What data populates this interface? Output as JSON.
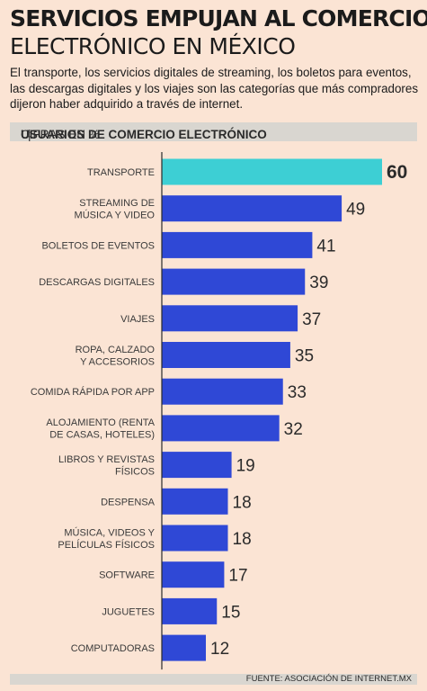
{
  "header": {
    "title_line1": "SERVICIOS EMPUJAN AL COMERCIO",
    "title_line2": "ELECTRÓNICO EN MÉXICO",
    "intro": "El transporte, los servicios digitales de streaming, los boletos para eventos, las descargas digitales y los viajes son las categorías que más compradores dijeron haber adquirido a través de internet."
  },
  "band": {
    "title": "USUARIOS DE COMERCIO ELECTRÓNICO",
    "separator": "|",
    "units": "CIFRAS EN %"
  },
  "footer": {
    "source": "FUENTE: ASOCIACIÓN DE INTERNET.MX"
  },
  "colors": {
    "background": "#fbe4d4",
    "bar": "#2f48d6",
    "highlight_bar": "#3dcfd4",
    "axis": "#2a2a2a"
  },
  "chart_data": {
    "type": "bar",
    "orientation": "horizontal",
    "title": "USUARIOS DE COMERCIO ELECTRÓNICO",
    "units": "CIFRAS EN %",
    "categories": [
      [
        "TRANSPORTE"
      ],
      [
        "STREAMING DE",
        "MÚSICA Y VIDEO"
      ],
      [
        "BOLETOS DE EVENTOS"
      ],
      [
        "DESCARGAS DIGITALES"
      ],
      [
        "VIAJES"
      ],
      [
        "ROPA, CALZADO",
        "Y ACCESORIOS"
      ],
      [
        "COMIDA RÁPIDA POR APP"
      ],
      [
        "ALOJAMIENTO (RENTA",
        "DE CASAS, HOTELES)"
      ],
      [
        "LIBROS Y REVISTAS",
        "FÍSICOS"
      ],
      [
        "DESPENSA"
      ],
      [
        "MÚSICA, VIDEOS Y",
        "PELÍCULAS FÍSICOS"
      ],
      [
        "SOFTWARE"
      ],
      [
        "JUGUETES"
      ],
      [
        "COMPUTADORAS"
      ]
    ],
    "values": [
      60,
      49,
      41,
      39,
      37,
      35,
      33,
      32,
      19,
      18,
      18,
      17,
      15,
      12
    ],
    "highlight_index": 0,
    "xlim": [
      0,
      60
    ],
    "grid": false,
    "legend": "none"
  }
}
